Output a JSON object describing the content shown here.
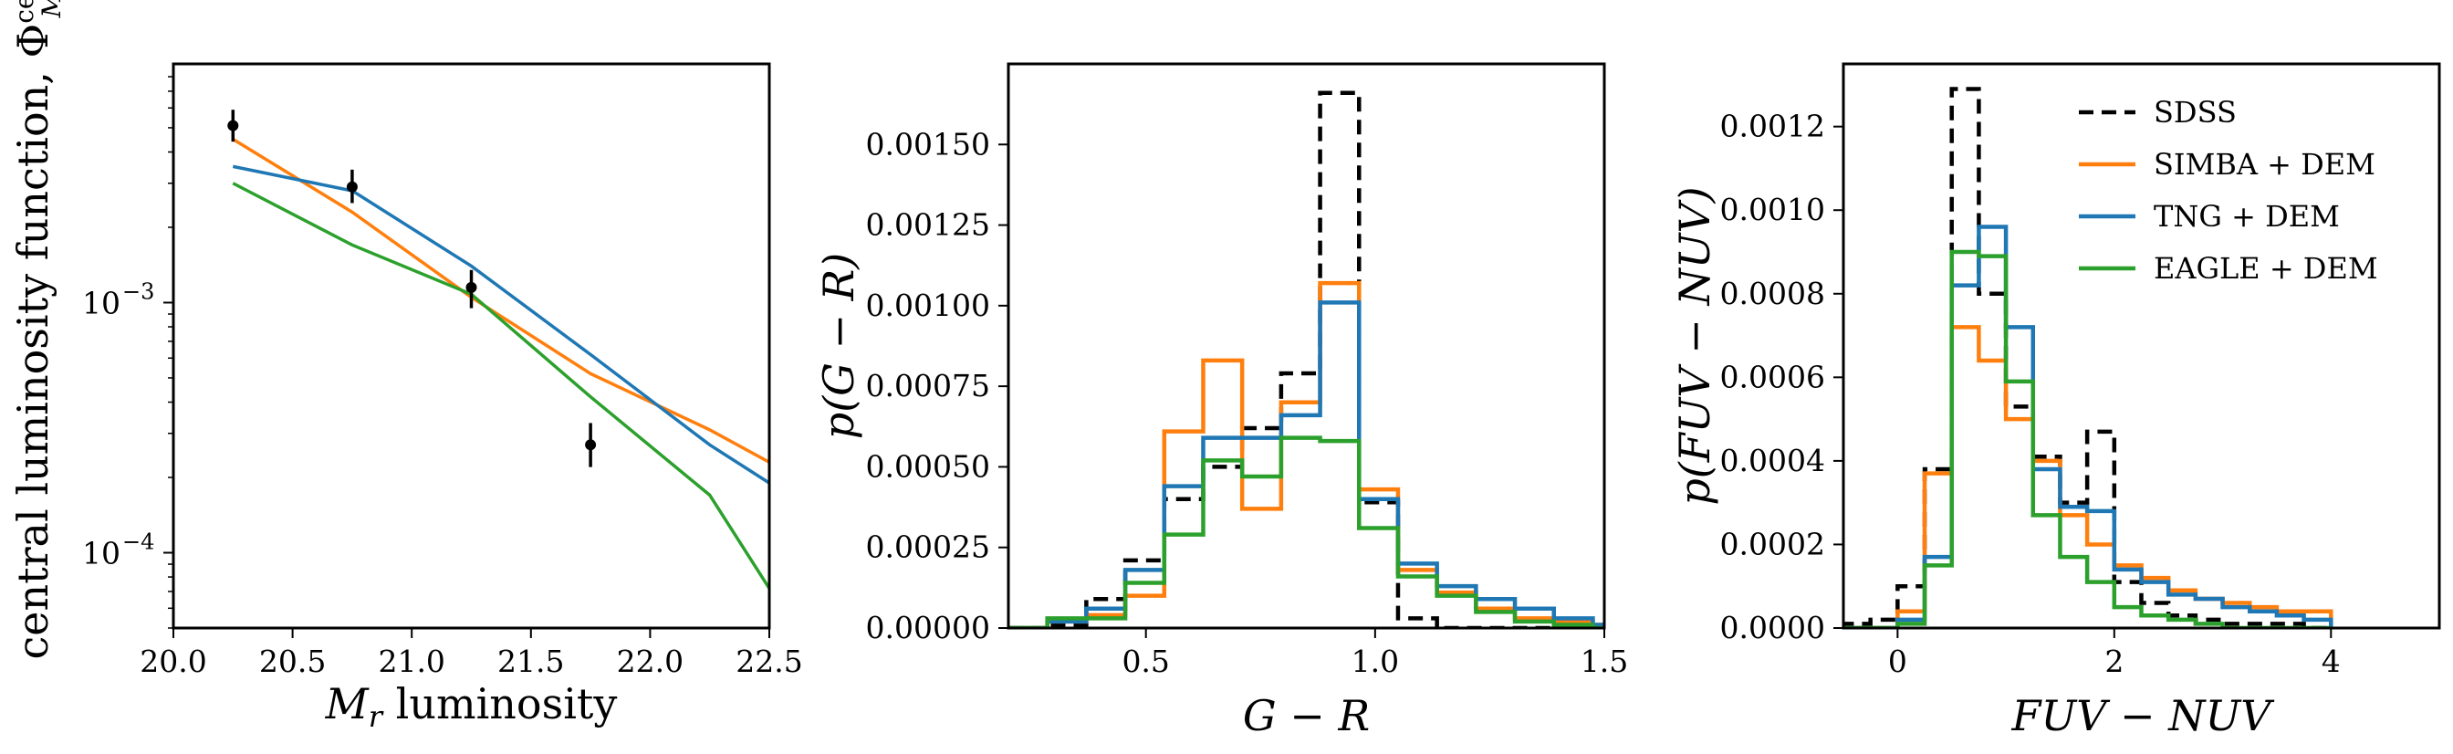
{
  "colors": {
    "sdss": "#000000",
    "simba": "#ff7f0e",
    "tng": "#1f77b4",
    "eagle": "#2ca02c"
  },
  "chart_data": [
    {
      "type": "line",
      "xlabel": "M_r luminosity",
      "ylabel": "central luminosity function, Φ^cen_{M_r}",
      "xlim": [
        20.0,
        22.5
      ],
      "ylim": [
        5e-05,
        0.009
      ],
      "yscale": "log",
      "xticks": [
        20.0,
        20.5,
        21.0,
        21.5,
        22.0,
        22.5
      ],
      "xtick_labels": [
        "20.0",
        "20.5",
        "21.0",
        "21.5",
        "22.0",
        "22.5"
      ],
      "yticks": [
        0.0001,
        0.001
      ],
      "ytick_labels": [
        "10^-4",
        "10^-3"
      ],
      "observed": {
        "name": "SDSS",
        "x": [
          20.25,
          20.75,
          21.25,
          21.75
        ],
        "y": [
          0.0051,
          0.0029,
          0.00115,
          0.00027
        ],
        "yerr_low": [
          0.0007,
          0.0004,
          0.0002,
          5e-05
        ],
        "yerr_high": [
          0.0008,
          0.0005,
          0.0002,
          6e-05
        ]
      },
      "series": [
        {
          "name": "SIMBA + DEM",
          "color": "#ff7f0e",
          "x": [
            20.25,
            20.75,
            21.25,
            21.75,
            22.25,
            22.5
          ],
          "y": [
            0.0045,
            0.0023,
            0.00105,
            0.00052,
            0.00031,
            0.00023
          ]
        },
        {
          "name": "TNG + DEM",
          "color": "#1f77b4",
          "x": [
            20.25,
            20.75,
            21.25,
            21.75,
            22.25,
            22.5
          ],
          "y": [
            0.0035,
            0.0028,
            0.0014,
            0.00062,
            0.00027,
            0.00019
          ]
        },
        {
          "name": "EAGLE + DEM",
          "color": "#2ca02c",
          "x": [
            20.25,
            20.75,
            21.25,
            21.75,
            22.25,
            22.5
          ],
          "y": [
            0.003,
            0.0017,
            0.00108,
            0.00042,
            0.00017,
            7.2e-05
          ]
        }
      ]
    },
    {
      "type": "histogram",
      "xlabel": "G − R",
      "ylabel": "p(G − R)",
      "xlim": [
        0.2,
        1.5
      ],
      "ylim": [
        0.0,
        0.00175
      ],
      "xticks": [
        0.5,
        1.0,
        1.5
      ],
      "xtick_labels": [
        "0.5",
        "1.0",
        "1.5"
      ],
      "yticks": [
        0.0,
        0.00025,
        0.0005,
        0.00075,
        0.001,
        0.00125,
        0.0015
      ],
      "ytick_labels": [
        "0.00000",
        "0.00025",
        "0.00050",
        "0.00075",
        "0.00100",
        "0.00125",
        "0.00150"
      ],
      "bin_edges": [
        0.2,
        0.285,
        0.37,
        0.455,
        0.54,
        0.625,
        0.71,
        0.795,
        0.88,
        0.965,
        1.05,
        1.135,
        1.22,
        1.305,
        1.39,
        1.475,
        1.5
      ],
      "series": [
        {
          "name": "SDSS",
          "color": "#000000",
          "dashed": true,
          "values": [
            0.0,
            1e-05,
            9e-05,
            0.00021,
            0.0004,
            0.0005,
            0.00062,
            0.00079,
            0.00166,
            0.00039,
            3e-05,
            0.0,
            0.0,
            0.0,
            0.0,
            0.0
          ]
        },
        {
          "name": "SIMBA + DEM",
          "color": "#ff7f0e",
          "values": [
            0.0,
            2e-05,
            4e-05,
            0.0001,
            0.00061,
            0.00083,
            0.00037,
            0.0007,
            0.00107,
            0.00043,
            0.00018,
            0.00011,
            6e-05,
            3e-05,
            2e-05,
            1e-05
          ]
        },
        {
          "name": "TNG + DEM",
          "color": "#1f77b4",
          "values": [
            0.0,
            2e-05,
            6e-05,
            0.00018,
            0.00044,
            0.00059,
            0.00059,
            0.00066,
            0.00101,
            0.0004,
            0.0002,
            0.00013,
            9e-05,
            6e-05,
            3e-05,
            1e-05
          ]
        },
        {
          "name": "EAGLE + DEM",
          "color": "#2ca02c",
          "values": [
            0.0,
            3e-05,
            3e-05,
            0.00014,
            0.00029,
            0.00052,
            0.00047,
            0.00059,
            0.00058,
            0.00031,
            0.00016,
            0.0001,
            5e-05,
            2e-05,
            1e-05,
            0.0
          ]
        }
      ]
    },
    {
      "type": "histogram",
      "xlabel": "FUV − NUV",
      "ylabel": "p(FUV − NUV)",
      "xlim": [
        -0.5,
        5.0
      ],
      "ylim": [
        0.0,
        0.00135
      ],
      "xticks": [
        0,
        2,
        4
      ],
      "xtick_labels": [
        "0",
        "2",
        "4"
      ],
      "yticks": [
        0.0,
        0.0002,
        0.0004,
        0.0006,
        0.0008,
        0.001,
        0.0012
      ],
      "ytick_labels": [
        "0.0000",
        "0.0002",
        "0.0004",
        "0.0006",
        "0.0008",
        "0.0010",
        "0.0012"
      ],
      "bin_edges": [
        -0.5,
        -0.25,
        0.0,
        0.25,
        0.5,
        0.75,
        1.0,
        1.25,
        1.5,
        1.75,
        2.0,
        2.25,
        2.5,
        2.75,
        3.0,
        3.25,
        3.5,
        3.75,
        4.0
      ],
      "legend": {
        "position": "upper right",
        "entries": [
          {
            "label": "SDSS",
            "color": "#000000",
            "dashed": true
          },
          {
            "label": "SIMBA + DEM",
            "color": "#ff7f0e",
            "dashed": false
          },
          {
            "label": "TNG + DEM",
            "color": "#1f77b4",
            "dashed": false
          },
          {
            "label": "EAGLE + DEM",
            "color": "#2ca02c",
            "dashed": false
          }
        ]
      },
      "series": [
        {
          "name": "SDSS",
          "color": "#000000",
          "dashed": true,
          "values": [
            1e-05,
            2e-05,
            0.0001,
            0.00038,
            0.00129,
            0.0008,
            0.00053,
            0.00041,
            0.0003,
            0.00047,
            0.00011,
            6e-05,
            3e-05,
            2e-05,
            1e-05,
            1e-05,
            1e-05,
            0.0
          ]
        },
        {
          "name": "SIMBA + DEM",
          "color": "#ff7f0e",
          "values": [
            0.0,
            0.0,
            4e-05,
            0.00037,
            0.00072,
            0.00064,
            0.0005,
            0.0004,
            0.00027,
            0.0002,
            0.00015,
            0.00012,
            9e-05,
            7e-05,
            6e-05,
            5e-05,
            4e-05,
            4e-05
          ]
        },
        {
          "name": "TNG + DEM",
          "color": "#1f77b4",
          "values": [
            0.0,
            0.0,
            2e-05,
            0.00017,
            0.00082,
            0.00096,
            0.00072,
            0.00038,
            0.00029,
            0.00028,
            0.00014,
            0.00011,
            8e-05,
            7e-05,
            5e-05,
            4e-05,
            3e-05,
            2e-05
          ]
        },
        {
          "name": "EAGLE + DEM",
          "color": "#2ca02c",
          "values": [
            0.0,
            0.0,
            1e-05,
            0.00015,
            0.0009,
            0.00089,
            0.00059,
            0.00027,
            0.00017,
            0.00011,
            5e-05,
            3e-05,
            2e-05,
            1e-05,
            0.0,
            0.0,
            0.0,
            0.0
          ]
        }
      ]
    }
  ]
}
